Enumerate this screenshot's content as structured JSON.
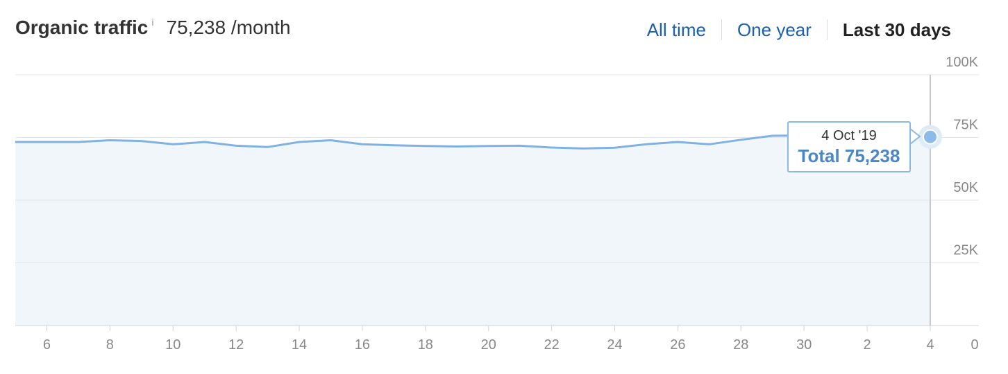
{
  "header": {
    "title": "Organic traffic",
    "info_label": "i",
    "value": "75,238 /month"
  },
  "ranges": [
    {
      "label": "All time",
      "active": false
    },
    {
      "label": "One year",
      "active": false
    },
    {
      "label": "Last 30 days",
      "active": true
    }
  ],
  "tooltip": {
    "date": "4 Oct '19",
    "total": "Total 75,238"
  },
  "colors": {
    "line": "#7fb2e3",
    "area": "#f1f6fb",
    "link": "#1b5fad",
    "grid": "#e2e6ea"
  },
  "chart_data": {
    "type": "area",
    "x": [
      5,
      6,
      7,
      8,
      9,
      10,
      11,
      12,
      13,
      14,
      15,
      16,
      17,
      18,
      19,
      20,
      21,
      22,
      23,
      24,
      25,
      26,
      27,
      28,
      29,
      30,
      31,
      32,
      33,
      34
    ],
    "xtick_labels": [
      "6",
      "8",
      "10",
      "12",
      "14",
      "16",
      "18",
      "20",
      "22",
      "24",
      "26",
      "28",
      "30",
      "2",
      "4",
      "0"
    ],
    "series": [
      {
        "values": [
          73200,
          73200,
          73200,
          73900,
          73600,
          72300,
          73200,
          71700,
          71200,
          73200,
          73900,
          72300,
          71900,
          71600,
          71400,
          71600,
          71700,
          71000,
          70600,
          70900,
          72300,
          73200,
          72300,
          74100,
          75700,
          75800,
          75600,
          75300,
          75000,
          75238
        ]
      }
    ],
    "ytick_labels": [
      "25K",
      "50K",
      "75K",
      "100K"
    ],
    "ylim": [
      0,
      100000
    ],
    "grid": true
  }
}
